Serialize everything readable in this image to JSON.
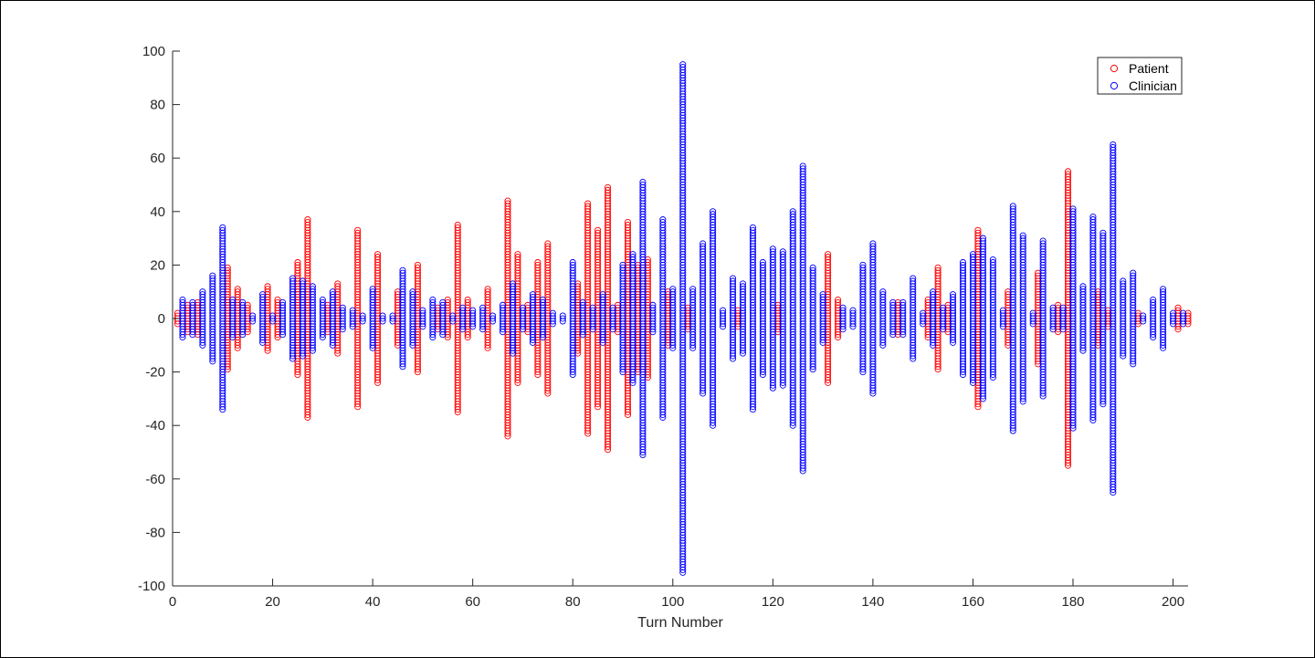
{
  "chart_data": {
    "type": "scatter",
    "xlabel": "Turn Number",
    "ylabel": "",
    "title": "",
    "xlim": [
      0,
      203
    ],
    "ylim": [
      -100,
      100
    ],
    "x_ticks": [
      0,
      20,
      40,
      60,
      80,
      100,
      120,
      140,
      160,
      180,
      200
    ],
    "y_ticks": [
      100,
      80,
      60,
      40,
      20,
      0,
      -20,
      -40,
      -60,
      -80,
      -100
    ],
    "x_tick_labels": [
      "0",
      "20",
      "40",
      "60",
      "80",
      "100",
      "120",
      "140",
      "160",
      "180",
      "200"
    ],
    "y_tick_labels": [
      "100",
      "80",
      "60",
      "40",
      "20",
      "0",
      "-20",
      "-40",
      "-60",
      "-80",
      "-100"
    ],
    "legend_position": "top-right",
    "marker": "open-circle",
    "grid": false,
    "series": [
      {
        "name": "Patient",
        "color": "#ff0000",
        "turns": [
          {
            "turn": 1,
            "amplitude": 2
          },
          {
            "turn": 3,
            "amplitude": 5
          },
          {
            "turn": 5,
            "amplitude": 6
          },
          {
            "turn": 11,
            "amplitude": 19
          },
          {
            "turn": 13,
            "amplitude": 11
          },
          {
            "turn": 15,
            "amplitude": 5
          },
          {
            "turn": 19,
            "amplitude": 12
          },
          {
            "turn": 21,
            "amplitude": 7
          },
          {
            "turn": 25,
            "amplitude": 21
          },
          {
            "turn": 27,
            "amplitude": 37
          },
          {
            "turn": 31,
            "amplitude": 5
          },
          {
            "turn": 33,
            "amplitude": 13
          },
          {
            "turn": 37,
            "amplitude": 33
          },
          {
            "turn": 41,
            "amplitude": 24
          },
          {
            "turn": 45,
            "amplitude": 10
          },
          {
            "turn": 49,
            "amplitude": 20
          },
          {
            "turn": 53,
            "amplitude": 4
          },
          {
            "turn": 55,
            "amplitude": 7
          },
          {
            "turn": 57,
            "amplitude": 35
          },
          {
            "turn": 59,
            "amplitude": 7
          },
          {
            "turn": 63,
            "amplitude": 11
          },
          {
            "turn": 67,
            "amplitude": 44
          },
          {
            "turn": 69,
            "amplitude": 24
          },
          {
            "turn": 71,
            "amplitude": 5
          },
          {
            "turn": 73,
            "amplitude": 21
          },
          {
            "turn": 75,
            "amplitude": 28
          },
          {
            "turn": 81,
            "amplitude": 13
          },
          {
            "turn": 83,
            "amplitude": 43
          },
          {
            "turn": 85,
            "amplitude": 33
          },
          {
            "turn": 87,
            "amplitude": 49
          },
          {
            "turn": 89,
            "amplitude": 5
          },
          {
            "turn": 91,
            "amplitude": 36
          },
          {
            "turn": 93,
            "amplitude": 20
          },
          {
            "turn": 95,
            "amplitude": 22
          },
          {
            "turn": 99,
            "amplitude": 10
          },
          {
            "turn": 103,
            "amplitude": 4
          },
          {
            "turn": 113,
            "amplitude": 3
          },
          {
            "turn": 121,
            "amplitude": 5
          },
          {
            "turn": 131,
            "amplitude": 24
          },
          {
            "turn": 133,
            "amplitude": 7
          },
          {
            "turn": 145,
            "amplitude": 6
          },
          {
            "turn": 151,
            "amplitude": 7
          },
          {
            "turn": 153,
            "amplitude": 19
          },
          {
            "turn": 155,
            "amplitude": 5
          },
          {
            "turn": 161,
            "amplitude": 33
          },
          {
            "turn": 167,
            "amplitude": 10
          },
          {
            "turn": 173,
            "amplitude": 17
          },
          {
            "turn": 177,
            "amplitude": 5
          },
          {
            "turn": 179,
            "amplitude": 55
          },
          {
            "turn": 185,
            "amplitude": 10
          },
          {
            "turn": 187,
            "amplitude": 3
          },
          {
            "turn": 193,
            "amplitude": 2
          },
          {
            "turn": 201,
            "amplitude": 4
          },
          {
            "turn": 203,
            "amplitude": 2
          }
        ]
      },
      {
        "name": "Clinician",
        "color": "#0000ff",
        "turns": [
          {
            "turn": 2,
            "amplitude": 7
          },
          {
            "turn": 4,
            "amplitude": 6
          },
          {
            "turn": 6,
            "amplitude": 10
          },
          {
            "turn": 8,
            "amplitude": 16
          },
          {
            "turn": 10,
            "amplitude": 34
          },
          {
            "turn": 12,
            "amplitude": 7
          },
          {
            "turn": 14,
            "amplitude": 6
          },
          {
            "turn": 16,
            "amplitude": 1
          },
          {
            "turn": 18,
            "amplitude": 9
          },
          {
            "turn": 20,
            "amplitude": 1
          },
          {
            "turn": 22,
            "amplitude": 6
          },
          {
            "turn": 24,
            "amplitude": 15
          },
          {
            "turn": 26,
            "amplitude": 14
          },
          {
            "turn": 28,
            "amplitude": 12
          },
          {
            "turn": 30,
            "amplitude": 7
          },
          {
            "turn": 32,
            "amplitude": 10
          },
          {
            "turn": 34,
            "amplitude": 4
          },
          {
            "turn": 36,
            "amplitude": 3
          },
          {
            "turn": 38,
            "amplitude": 1
          },
          {
            "turn": 40,
            "amplitude": 11
          },
          {
            "turn": 42,
            "amplitude": 1
          },
          {
            "turn": 44,
            "amplitude": 1
          },
          {
            "turn": 46,
            "amplitude": 18
          },
          {
            "turn": 48,
            "amplitude": 10
          },
          {
            "turn": 50,
            "amplitude": 3
          },
          {
            "turn": 52,
            "amplitude": 7
          },
          {
            "turn": 54,
            "amplitude": 6
          },
          {
            "turn": 56,
            "amplitude": 1
          },
          {
            "turn": 58,
            "amplitude": 4
          },
          {
            "turn": 60,
            "amplitude": 3
          },
          {
            "turn": 62,
            "amplitude": 4
          },
          {
            "turn": 64,
            "amplitude": 1
          },
          {
            "turn": 66,
            "amplitude": 5
          },
          {
            "turn": 68,
            "amplitude": 13
          },
          {
            "turn": 70,
            "amplitude": 4
          },
          {
            "turn": 72,
            "amplitude": 9
          },
          {
            "turn": 74,
            "amplitude": 7
          },
          {
            "turn": 76,
            "amplitude": 2
          },
          {
            "turn": 78,
            "amplitude": 1
          },
          {
            "turn": 80,
            "amplitude": 21
          },
          {
            "turn": 82,
            "amplitude": 6
          },
          {
            "turn": 84,
            "amplitude": 4
          },
          {
            "turn": 86,
            "amplitude": 9
          },
          {
            "turn": 88,
            "amplitude": 4
          },
          {
            "turn": 90,
            "amplitude": 20
          },
          {
            "turn": 92,
            "amplitude": 24
          },
          {
            "turn": 94,
            "amplitude": 51
          },
          {
            "turn": 96,
            "amplitude": 5
          },
          {
            "turn": 98,
            "amplitude": 37
          },
          {
            "turn": 100,
            "amplitude": 11
          },
          {
            "turn": 102,
            "amplitude": 95
          },
          {
            "turn": 104,
            "amplitude": 11
          },
          {
            "turn": 106,
            "amplitude": 28
          },
          {
            "turn": 108,
            "amplitude": 40
          },
          {
            "turn": 110,
            "amplitude": 3
          },
          {
            "turn": 112,
            "amplitude": 15
          },
          {
            "turn": 114,
            "amplitude": 13
          },
          {
            "turn": 116,
            "amplitude": 34
          },
          {
            "turn": 118,
            "amplitude": 21
          },
          {
            "turn": 120,
            "amplitude": 26
          },
          {
            "turn": 122,
            "amplitude": 25
          },
          {
            "turn": 124,
            "amplitude": 40
          },
          {
            "turn": 126,
            "amplitude": 57
          },
          {
            "turn": 128,
            "amplitude": 19
          },
          {
            "turn": 130,
            "amplitude": 9
          },
          {
            "turn": 134,
            "amplitude": 4
          },
          {
            "turn": 136,
            "amplitude": 3
          },
          {
            "turn": 138,
            "amplitude": 20
          },
          {
            "turn": 140,
            "amplitude": 28
          },
          {
            "turn": 142,
            "amplitude": 10
          },
          {
            "turn": 144,
            "amplitude": 6
          },
          {
            "turn": 146,
            "amplitude": 6
          },
          {
            "turn": 148,
            "amplitude": 15
          },
          {
            "turn": 150,
            "amplitude": 2
          },
          {
            "turn": 152,
            "amplitude": 10
          },
          {
            "turn": 154,
            "amplitude": 4
          },
          {
            "turn": 156,
            "amplitude": 9
          },
          {
            "turn": 158,
            "amplitude": 21
          },
          {
            "turn": 160,
            "amplitude": 24
          },
          {
            "turn": 162,
            "amplitude": 30
          },
          {
            "turn": 164,
            "amplitude": 22
          },
          {
            "turn": 166,
            "amplitude": 3
          },
          {
            "turn": 168,
            "amplitude": 42
          },
          {
            "turn": 170,
            "amplitude": 31
          },
          {
            "turn": 172,
            "amplitude": 2
          },
          {
            "turn": 174,
            "amplitude": 29
          },
          {
            "turn": 176,
            "amplitude": 4
          },
          {
            "turn": 178,
            "amplitude": 4
          },
          {
            "turn": 180,
            "amplitude": 41
          },
          {
            "turn": 182,
            "amplitude": 12
          },
          {
            "turn": 184,
            "amplitude": 38
          },
          {
            "turn": 186,
            "amplitude": 32
          },
          {
            "turn": 188,
            "amplitude": 65
          },
          {
            "turn": 190,
            "amplitude": 14
          },
          {
            "turn": 192,
            "amplitude": 17
          },
          {
            "turn": 194,
            "amplitude": 1
          },
          {
            "turn": 196,
            "amplitude": 7
          },
          {
            "turn": 198,
            "amplitude": 11
          },
          {
            "turn": 200,
            "amplitude": 2
          },
          {
            "turn": 202,
            "amplitude": 2
          }
        ]
      }
    ]
  }
}
